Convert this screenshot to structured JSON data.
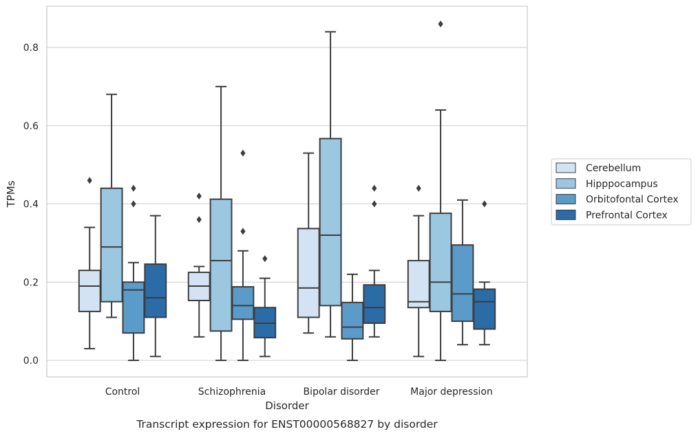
{
  "chart_data": {
    "type": "boxplot",
    "caption": "Transcript expression for ENST00000568827 by disorder",
    "xlabel": "Disorder",
    "ylabel": "TPMs",
    "ylim": [
      -0.04,
      0.9
    ],
    "yticks": [
      0.0,
      0.2,
      0.4,
      0.6,
      0.8
    ],
    "ytick_labels": [
      "0.0",
      "0.2",
      "0.4",
      "0.6",
      "0.8"
    ],
    "grid": "horizontal",
    "legend_position": "right",
    "categories": [
      "Control",
      "Schizophrenia",
      "Bipolar disorder",
      "Major depression"
    ],
    "series": [
      {
        "name": "Cerebellum",
        "color": "#d4e3f3",
        "boxes": [
          {
            "whislo": 0.03,
            "q1": 0.125,
            "med": 0.19,
            "q3": 0.23,
            "whishi": 0.34,
            "fliers": [
              0.46
            ]
          },
          {
            "whislo": 0.06,
            "q1": 0.153,
            "med": 0.19,
            "q3": 0.225,
            "whishi": 0.24,
            "fliers": [
              0.36,
              0.42
            ]
          },
          {
            "whislo": 0.07,
            "q1": 0.11,
            "med": 0.185,
            "q3": 0.337,
            "whishi": 0.53,
            "fliers": []
          },
          {
            "whislo": 0.01,
            "q1": 0.135,
            "med": 0.15,
            "q3": 0.255,
            "whishi": 0.37,
            "fliers": [
              0.44
            ]
          }
        ]
      },
      {
        "name": "Hipppocampus",
        "color": "#9cc7e0",
        "boxes": [
          {
            "whislo": 0.11,
            "q1": 0.15,
            "med": 0.29,
            "q3": 0.44,
            "whishi": 0.68,
            "fliers": []
          },
          {
            "whislo": 0.0,
            "q1": 0.075,
            "med": 0.255,
            "q3": 0.412,
            "whishi": 0.7,
            "fliers": []
          },
          {
            "whislo": 0.06,
            "q1": 0.14,
            "med": 0.32,
            "q3": 0.567,
            "whishi": 0.84,
            "fliers": []
          },
          {
            "whislo": 0.0,
            "q1": 0.125,
            "med": 0.2,
            "q3": 0.376,
            "whishi": 0.64,
            "fliers": [
              0.86
            ]
          }
        ]
      },
      {
        "name": "Orbitofontal Cortex",
        "color": "#5b9bc9",
        "boxes": [
          {
            "whislo": 0.0,
            "q1": 0.07,
            "med": 0.18,
            "q3": 0.2,
            "whishi": 0.25,
            "fliers": [
              0.4,
              0.44
            ]
          },
          {
            "whislo": 0.0,
            "q1": 0.105,
            "med": 0.14,
            "q3": 0.188,
            "whishi": 0.28,
            "fliers": [
              0.33,
              0.53
            ]
          },
          {
            "whislo": 0.0,
            "q1": 0.055,
            "med": 0.085,
            "q3": 0.148,
            "whishi": 0.22,
            "fliers": []
          },
          {
            "whislo": 0.04,
            "q1": 0.1,
            "med": 0.17,
            "q3": 0.295,
            "whishi": 0.41,
            "fliers": []
          }
        ]
      },
      {
        "name": "Prefrontal Cortex",
        "color": "#2b6ba6",
        "boxes": [
          {
            "whislo": 0.01,
            "q1": 0.11,
            "med": 0.16,
            "q3": 0.246,
            "whishi": 0.37,
            "fliers": []
          },
          {
            "whislo": 0.01,
            "q1": 0.058,
            "med": 0.095,
            "q3": 0.135,
            "whishi": 0.21,
            "fliers": [
              0.26
            ]
          },
          {
            "whislo": 0.06,
            "q1": 0.095,
            "med": 0.135,
            "q3": 0.193,
            "whishi": 0.23,
            "fliers": [
              0.4,
              0.44
            ]
          },
          {
            "whislo": 0.04,
            "q1": 0.08,
            "med": 0.15,
            "q3": 0.182,
            "whishi": 0.2,
            "fliers": [
              0.4
            ]
          }
        ]
      }
    ]
  }
}
